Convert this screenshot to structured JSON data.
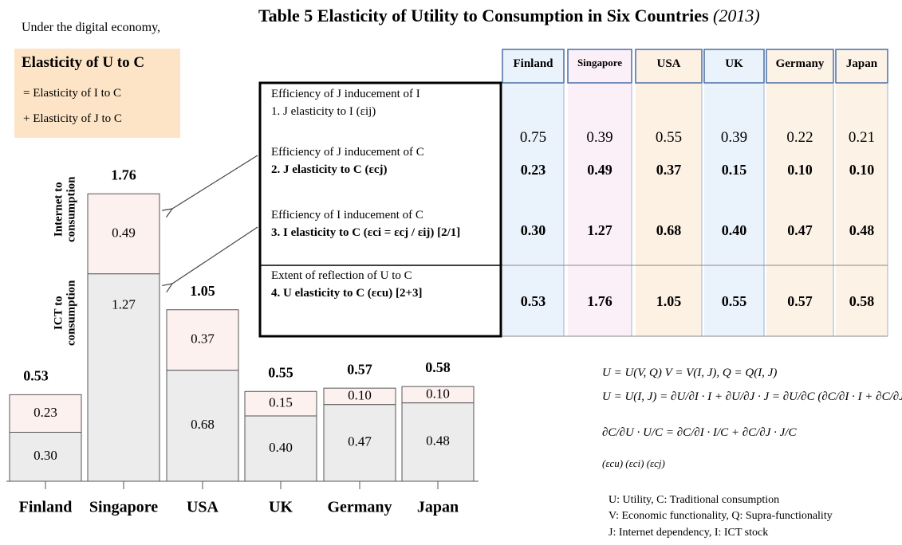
{
  "note": {
    "intro": "Under the digital economy,",
    "box": [
      "Elasticity of U to C",
      "= Elasticity of I to C",
      "+ Elasticity of J to C"
    ]
  },
  "chart_data": {
    "type": "bar",
    "stacked": true,
    "categories": [
      "Finland",
      "Singapore",
      "USA",
      "UK",
      "Germany",
      "Japan"
    ],
    "series": [
      {
        "name": "ICT to consumption",
        "color": "#ececec",
        "values": [
          0.3,
          1.27,
          0.68,
          0.4,
          0.47,
          0.48
        ],
        "value_labels": [
          "0.30",
          "1.27",
          "0.68",
          "0.40",
          "0.47",
          "0.48"
        ]
      },
      {
        "name": "Internet to consumption",
        "color": "#fdf1ef",
        "values": [
          0.23,
          0.49,
          0.37,
          0.15,
          0.1,
          0.1
        ],
        "value_labels": [
          "0.23",
          "0.49",
          "0.37",
          "0.15",
          "0.10",
          "0.10"
        ]
      }
    ],
    "totals": [
      0.53,
      1.76,
      1.05,
      0.55,
      0.57,
      0.58
    ]
  },
  "table": {
    "title": "Table 5 Elasticity of Utility to Consumption in Six Countries",
    "year": "(2013)",
    "columns": [
      "Finland",
      "Singapore",
      "USA",
      "UK",
      "Germany",
      "Japan"
    ],
    "rows": [
      {
        "heading": "Efficiency of J inducement of I",
        "label": "1. J elasticity to I   (εij)",
        "values": [
          "0.75",
          "0.39",
          "0.55",
          "0.39",
          "0.22",
          "0.21"
        ]
      },
      {
        "heading": "Efficiency of J inducement of C",
        "label": "2. J elasticity to C   (εcj)",
        "values": [
          "0.23",
          "0.49",
          "0.37",
          "0.15",
          "0.10",
          "0.10"
        ]
      },
      {
        "heading": "Efficiency of I inducement of C",
        "label": "3. I elasticity to C (εci = εcj / εij)  [2/1]",
        "values": [
          "0.30",
          "1.27",
          "0.68",
          "0.40",
          "0.47",
          "0.48"
        ]
      },
      {
        "heading": "Extent of reflection of U to C",
        "label": "4. U elasticity to C   (εcu)   [2+3]",
        "values": [
          "0.53",
          "1.76",
          "1.05",
          "0.55",
          "0.57",
          "0.58"
        ]
      }
    ]
  },
  "formulas": [
    "U = U(V, Q)   V = V(I, J), Q = Q(I, J)",
    "U = U(I, J) = ∂U/∂I · I + ∂U/∂J · J = ∂U/∂C (∂C/∂I · I + ∂C/∂J · J)",
    "∂C/∂U · U/C = ∂C/∂I · I/C + ∂C/∂J · J/C",
    "(εcu)      (εci)      (εcj)"
  ],
  "legend": [
    "U: Utility,  C: Traditional consumption",
    "V: Economic functionality, Q: Supra-functionality",
    "J: Internet dependency,   I: ICT stock"
  ]
}
